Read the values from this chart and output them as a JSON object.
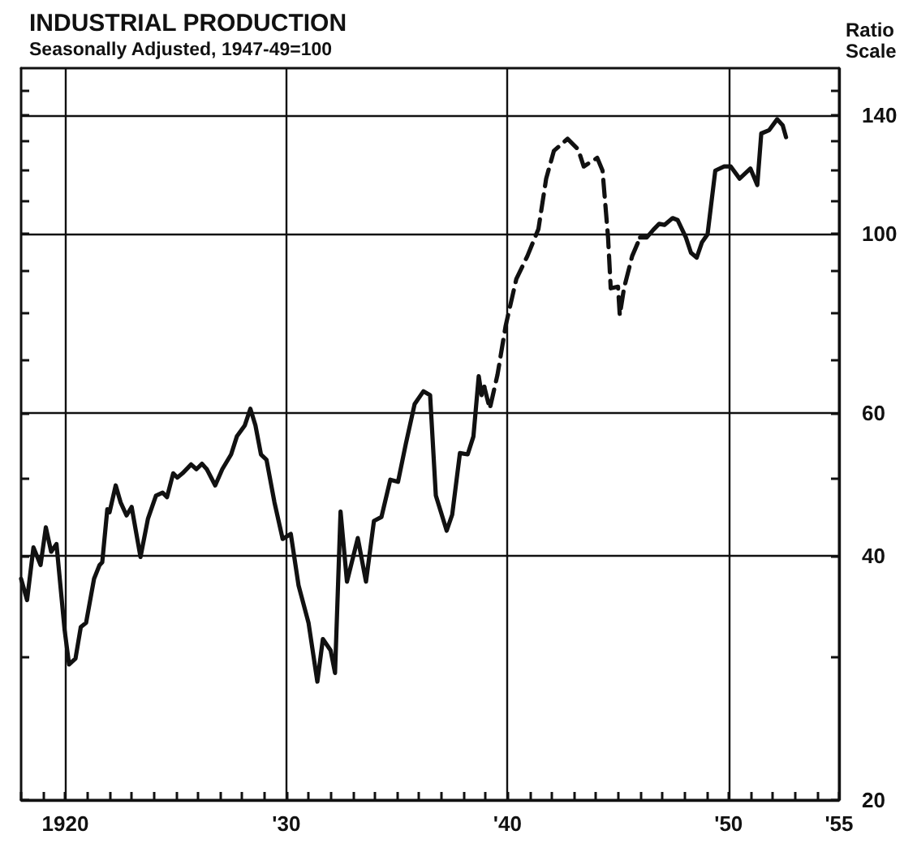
{
  "chart_data": {
    "type": "line",
    "title": "INDUSTRIAL PRODUCTION",
    "subtitle": "Seasonally Adjusted, 1947-49=100",
    "ylabel": "Ratio\nScale",
    "log": "y",
    "grid": true,
    "marker": "none",
    "xlim": [
      1918,
      1955
    ],
    "xticks": [
      {
        "value": 1918,
        "label": null
      },
      {
        "value": 1919,
        "label": null
      },
      {
        "value": 1920,
        "label": "1920"
      },
      {
        "value": 1921,
        "label": null
      },
      {
        "value": 1922,
        "label": null
      },
      {
        "value": 1923,
        "label": null
      },
      {
        "value": 1924,
        "label": null
      },
      {
        "value": 1925,
        "label": null
      },
      {
        "value": 1926,
        "label": null
      },
      {
        "value": 1927,
        "label": null
      },
      {
        "value": 1928,
        "label": null
      },
      {
        "value": 1929,
        "label": null
      },
      {
        "value": 1930,
        "label": "'30"
      },
      {
        "value": 1931,
        "label": null
      },
      {
        "value": 1932,
        "label": null
      },
      {
        "value": 1933,
        "label": null
      },
      {
        "value": 1934,
        "label": null
      },
      {
        "value": 1935,
        "label": null
      },
      {
        "value": 1936,
        "label": null
      },
      {
        "value": 1937,
        "label": null
      },
      {
        "value": 1938,
        "label": null
      },
      {
        "value": 1939,
        "label": null
      },
      {
        "value": 1940,
        "label": "'40"
      },
      {
        "value": 1941,
        "label": null
      },
      {
        "value": 1942,
        "label": null
      },
      {
        "value": 1943,
        "label": null
      },
      {
        "value": 1944,
        "label": null
      },
      {
        "value": 1945,
        "label": null
      },
      {
        "value": 1946,
        "label": null
      },
      {
        "value": 1947,
        "label": null
      },
      {
        "value": 1948,
        "label": null
      },
      {
        "value": 1949,
        "label": null
      },
      {
        "value": 1950,
        "label": "'50"
      },
      {
        "value": 1951,
        "label": null
      },
      {
        "value": 1952,
        "label": null
      },
      {
        "value": 1953,
        "label": null
      },
      {
        "value": 1954,
        "label": null
      },
      {
        "value": 1955,
        "label": "'55"
      }
    ],
    "ylim": [
      20,
      160
    ],
    "yticks": [
      20,
      {
        "value": 30,
        "label": null
      },
      40,
      {
        "value": 50,
        "label": null
      },
      60,
      {
        "value": 70,
        "label": null
      },
      {
        "value": 80,
        "label": null
      },
      {
        "value": 90,
        "label": null
      },
      100,
      {
        "value": 110,
        "label": null
      },
      {
        "value": 120,
        "label": null
      },
      {
        "value": 130,
        "label": null
      },
      140,
      {
        "value": 150,
        "label": null
      }
    ],
    "series": [
      {
        "color": "#111111",
        "line_style": "solid",
        "x": [
          1918.0,
          1918.27,
          1918.56,
          1918.88,
          1919.12,
          1919.36,
          1919.6,
          1919.97,
          1920.17,
          1920.46,
          1920.7,
          1920.94,
          1921.3,
          1921.55,
          1921.67,
          1921.9,
          1922.0,
          1922.28,
          1922.5,
          1922.77,
          1923.0,
          1923.4,
          1923.74,
          1924.1,
          1924.4,
          1924.6,
          1924.88,
          1925.07,
          1925.3,
          1925.69,
          1925.93,
          1926.18,
          1926.4,
          1926.78,
          1927.1,
          1927.5,
          1927.76,
          1928.12,
          1928.37,
          1928.6,
          1928.85,
          1929.1,
          1929.46,
          1929.83,
          1930.2,
          1930.55,
          1931.0,
          1931.4,
          1931.65,
          1932.0,
          1932.2,
          1932.45,
          1932.74,
          1933.23,
          1933.6,
          1933.96,
          1934.3,
          1934.7,
          1935.05,
          1935.4,
          1935.8,
          1936.2,
          1936.5,
          1936.76,
          1937.25,
          1937.5,
          1937.85,
          1938.2,
          1938.46,
          1938.7,
          1938.83,
          1938.95
        ],
        "values": [
          37.5,
          35.3,
          41.0,
          39.0,
          43.4,
          40.5,
          41.4,
          32.4,
          29.4,
          29.9,
          32.7,
          33.1,
          37.5,
          39.0,
          39.3,
          45.7,
          45.3,
          48.9,
          46.6,
          44.9,
          46.0,
          39.9,
          44.5,
          47.5,
          47.9,
          47.3,
          50.6,
          50.0,
          50.6,
          51.9,
          51.2,
          52.0,
          51.2,
          48.9,
          51.2,
          53.4,
          56.2,
          58.0,
          60.8,
          58.0,
          53.4,
          52.6,
          46.6,
          42.0,
          42.6,
          36.8,
          33.1,
          28.0,
          31.6,
          30.6,
          28.7,
          45.4,
          37.2,
          42.1,
          37.2,
          44.2,
          44.7,
          49.7,
          49.4,
          55.0,
          61.6,
          63.9,
          63.2,
          47.5,
          43.0,
          45.0,
          53.6,
          53.4,
          56.2,
          66.7,
          63.2,
          64.7
        ]
      },
      {
        "color": "#111111",
        "line_style": "dashed",
        "x": [
          1938.95,
          1939.2,
          1939.55,
          1939.92,
          1940.4,
          1940.9,
          1941.4,
          1941.75,
          1942.1,
          1942.72,
          1943.2,
          1943.45,
          1944.06,
          1944.3,
          1944.55,
          1944.67,
          1945.0,
          1945.08,
          1945.27,
          1945.64,
          1946.0
        ],
        "values": [
          64.7,
          60.8,
          67.0,
          77.0,
          87.9,
          93.8,
          101.3,
          116.9,
          126.5,
          130.9,
          127.0,
          121.0,
          124.0,
          119.6,
          98.9,
          85.6,
          86.0,
          79.3,
          85.6,
          93.8,
          98.9
        ]
      },
      {
        "color": "#111111",
        "line_style": "solid",
        "x": [
          1946.0,
          1946.3,
          1946.6,
          1946.86,
          1947.1,
          1947.47,
          1947.7,
          1948.07,
          1948.3,
          1948.56,
          1948.8,
          1949.05,
          1949.4,
          1949.8,
          1950.1,
          1950.5,
          1950.99,
          1951.3,
          1951.48,
          1951.84,
          1952.2,
          1952.45,
          1952.6
        ],
        "values": [
          98.9,
          98.9,
          101.1,
          102.8,
          102.5,
          104.5,
          103.9,
          98.9,
          94.7,
          93.4,
          97.6,
          99.8,
          119.6,
          121.0,
          121.0,
          116.9,
          120.3,
          114.8,
          132.9,
          134.2,
          138.4,
          136.0,
          131.5
        ]
      }
    ]
  }
}
